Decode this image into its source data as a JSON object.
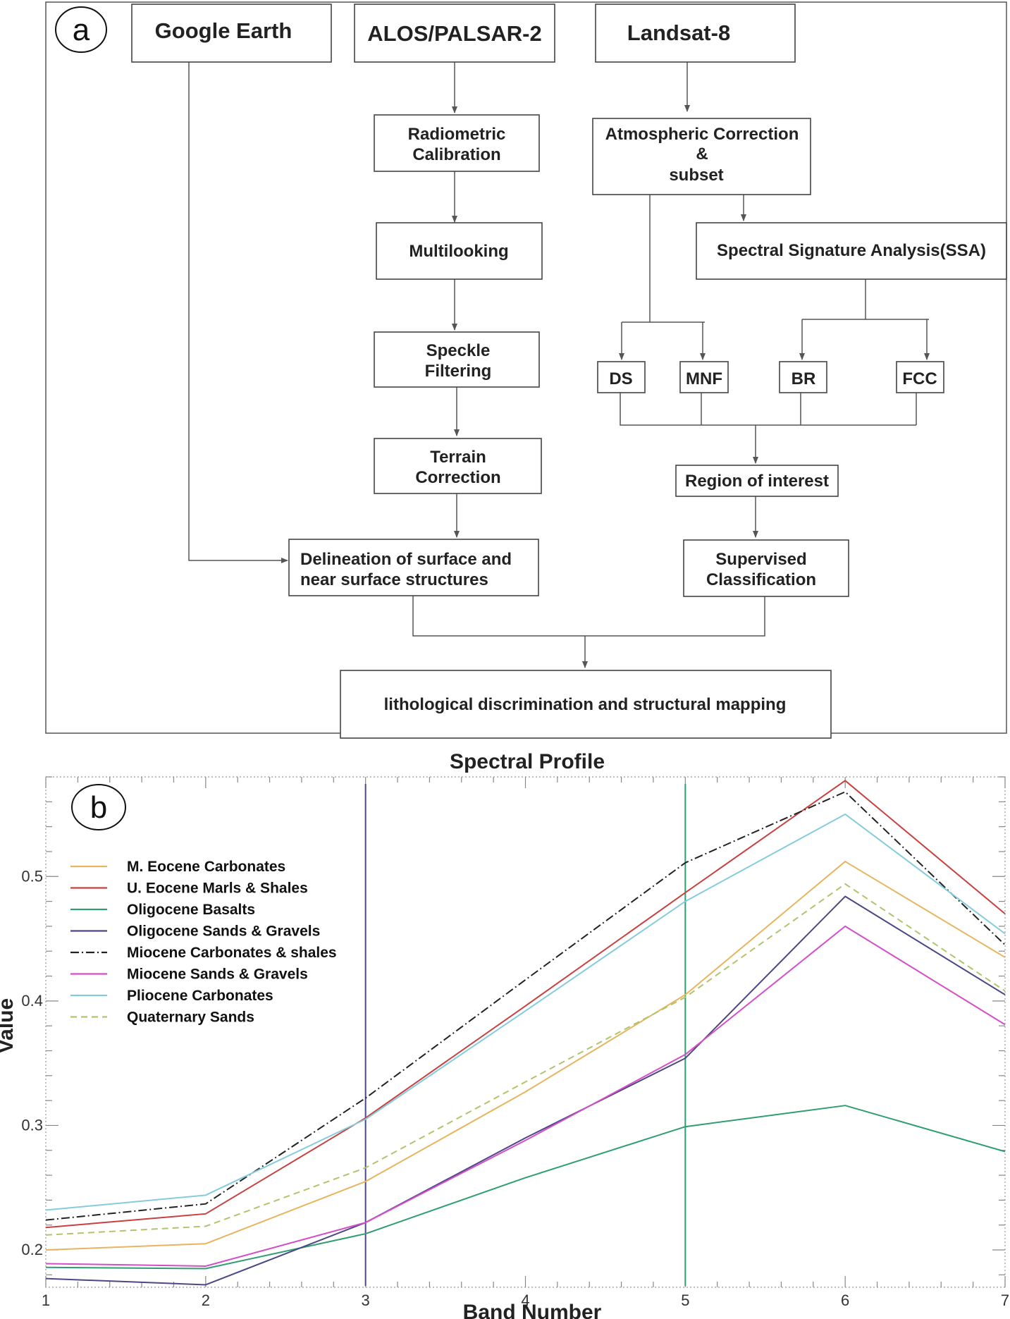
{
  "panel_a": {
    "label": "a",
    "nodes": {
      "google_earth": "Google Earth",
      "alos": "ALOS/PALSAR-2",
      "landsat": "Landsat-8",
      "radiometric": [
        "Radiometric",
        "Calibration"
      ],
      "atmospheric": [
        "Atmospheric Correction",
        "&",
        "subset"
      ],
      "multilooking": "Multilooking",
      "ssa": "Spectral Signature Analysis(SSA)",
      "speckle": [
        "Speckle",
        "Filtering"
      ],
      "ds": "DS",
      "mnf": "MNF",
      "br": "BR",
      "fcc": "FCC",
      "terrain": [
        "Terrain",
        "Correction"
      ],
      "roi": "Region of interest",
      "delineation": [
        "Delineation of surface and",
        "near surface structures"
      ],
      "supervised": [
        "Supervised",
        "Classification"
      ],
      "lithological": "lithological discrimination and structural mapping"
    }
  },
  "panel_b": {
    "label": "b",
    "chart_data": {
      "type": "line",
      "title": "Spectral Profile",
      "xlabel": "Band Number",
      "ylabel": "Value",
      "x": [
        1,
        2,
        3,
        4,
        5,
        6,
        7
      ],
      "xlim": [
        1,
        7
      ],
      "ylim": [
        0.17,
        0.58
      ],
      "xticks": [
        "1",
        "2",
        "3",
        "4",
        "5",
        "6",
        "7"
      ],
      "yticks": [
        "0.2",
        "0.3",
        "0.4",
        "0.5"
      ],
      "grid": false,
      "legend_position": "upper-left",
      "vertical_markers": [
        {
          "x": 3,
          "color": "#4b4885"
        },
        {
          "x": 5,
          "color": "#2f9e70"
        }
      ],
      "series": [
        {
          "name": "M. Eocene Carbonates",
          "color": "#e8b45e",
          "dash": "solid",
          "values": [
            0.2,
            0.205,
            0.255,
            0.327,
            0.405,
            0.512,
            0.435
          ]
        },
        {
          "name": "U. Eocene Marls & Shales",
          "color": "#c8403f",
          "dash": "solid",
          "values": [
            0.218,
            0.229,
            0.306,
            0.396,
            0.487,
            0.577,
            0.47
          ]
        },
        {
          "name": "Oligocene Basalts",
          "color": "#2f9e70",
          "dash": "solid",
          "values": [
            0.186,
            0.185,
            0.213,
            0.258,
            0.299,
            0.316,
            0.279
          ]
        },
        {
          "name": "Oligocene Sands & Gravels",
          "color": "#4b4885",
          "dash": "solid",
          "values": [
            0.177,
            0.172,
            0.222,
            0.29,
            0.354,
            0.484,
            0.405
          ]
        },
        {
          "name": "Miocene Carbonates & shales",
          "color": "#222222",
          "dash": "dashdot",
          "values": [
            0.224,
            0.237,
            0.322,
            0.417,
            0.511,
            0.568,
            0.445
          ]
        },
        {
          "name": "Miocene Sands & Gravels",
          "color": "#d44ec8",
          "dash": "solid",
          "values": [
            0.189,
            0.187,
            0.222,
            0.288,
            0.357,
            0.46,
            0.381
          ]
        },
        {
          "name": "Pliocene Carbonates",
          "color": "#84ccdc",
          "dash": "solid",
          "values": [
            0.232,
            0.244,
            0.305,
            0.392,
            0.48,
            0.55,
            0.454
          ]
        },
        {
          "name": "Quaternary Sands",
          "color": "#b0c46c",
          "dash": "dashed",
          "values": [
            0.212,
            0.219,
            0.266,
            0.335,
            0.403,
            0.494,
            0.408
          ]
        }
      ]
    }
  }
}
